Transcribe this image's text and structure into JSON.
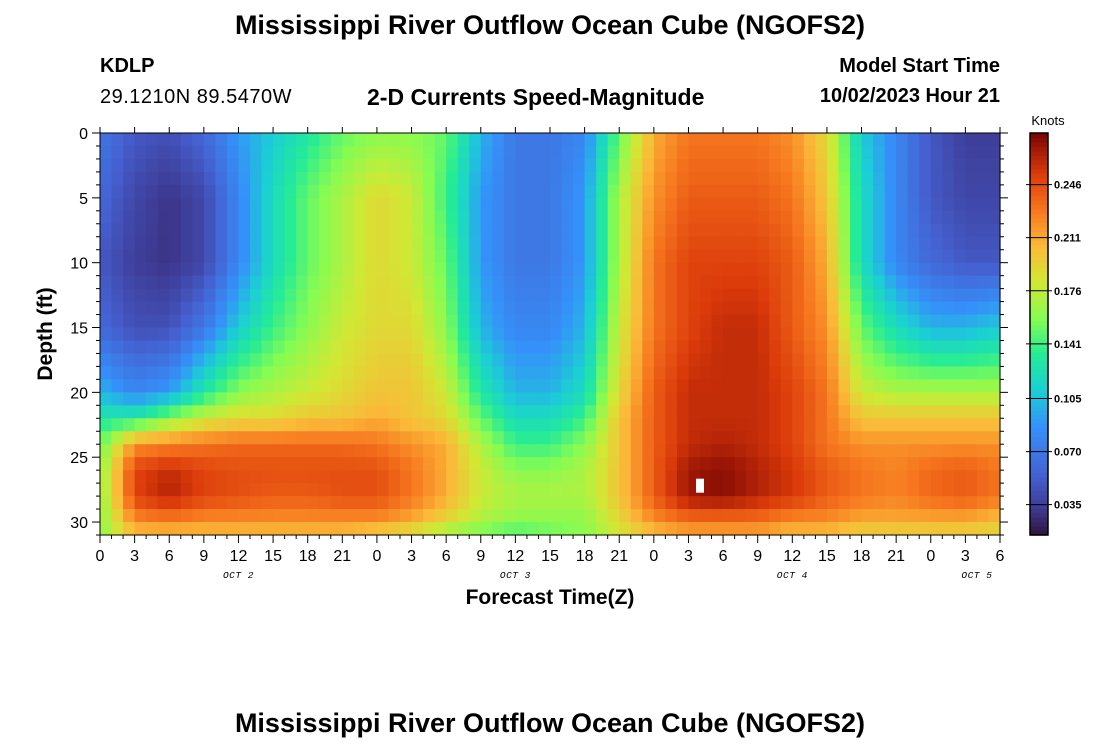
{
  "page_title": "Mississippi River Outflow Ocean Cube (NGOFS2)",
  "station": {
    "id": "KDLP",
    "coords": "29.1210N  89.5470W"
  },
  "model_start": {
    "label": "Model Start Time",
    "value": "10/02/2023 Hour 21"
  },
  "chart_data": {
    "type": "heatmap",
    "title": "2-D Currents Speed-Magnitude",
    "xlabel": "Forecast Time(Z)",
    "ylabel": "Depth (ft)",
    "colorbar_label": "Knots",
    "x_range_hours": [
      0,
      78
    ],
    "y_range_ft": [
      0,
      31
    ],
    "y_inverted": true,
    "grid": false,
    "x_tick_labels": [
      "0",
      "3",
      "6",
      "9",
      "12",
      "15",
      "18",
      "21",
      "0",
      "3",
      "6",
      "9",
      "12",
      "15",
      "18",
      "21",
      "0",
      "3",
      "6",
      "9",
      "12",
      "15",
      "18",
      "21",
      "0",
      "3",
      "6"
    ],
    "y_tick_labels": [
      "0",
      "5",
      "10",
      "15",
      "20",
      "25",
      "30"
    ],
    "date_labels": [
      {
        "text": "OCT 2",
        "hour": 12
      },
      {
        "text": "OCT 3",
        "hour": 36
      },
      {
        "text": "OCT 4",
        "hour": 60
      },
      {
        "text": "OCT 5",
        "hour": 76
      }
    ],
    "colorbar": {
      "min": 0.015,
      "max": 0.28,
      "tick_labels": [
        "0.035",
        "0.070",
        "0.105",
        "0.141",
        "0.176",
        "0.211",
        "0.246"
      ],
      "tick_values": [
        0.035,
        0.07,
        0.105,
        0.141,
        0.176,
        0.211,
        0.246
      ]
    },
    "speed_min": 0.015,
    "speed_max": 0.28,
    "speed_grid": {
      "hours": [
        0,
        3,
        6,
        9,
        12,
        15,
        18,
        21,
        24,
        27,
        30,
        33,
        36,
        39,
        42,
        45,
        48,
        51,
        54,
        57,
        60,
        63,
        66,
        69,
        72,
        75,
        78
      ],
      "depths_ft": [
        0,
        5,
        10,
        15,
        20,
        22,
        24,
        26,
        28,
        30,
        31
      ],
      "values": [
        [
          0.07,
          0.05,
          0.045,
          0.06,
          0.09,
          0.11,
          0.13,
          0.15,
          0.16,
          0.16,
          0.15,
          0.1,
          0.07,
          0.07,
          0.08,
          0.15,
          0.21,
          0.23,
          0.23,
          0.23,
          0.22,
          0.19,
          0.11,
          0.08,
          0.05,
          0.035,
          0.035
        ],
        [
          0.06,
          0.04,
          0.03,
          0.04,
          0.08,
          0.12,
          0.15,
          0.17,
          0.19,
          0.18,
          0.14,
          0.09,
          0.07,
          0.07,
          0.09,
          0.17,
          0.22,
          0.24,
          0.24,
          0.24,
          0.23,
          0.2,
          0.12,
          0.08,
          0.05,
          0.04,
          0.04
        ],
        [
          0.05,
          0.035,
          0.03,
          0.04,
          0.08,
          0.12,
          0.15,
          0.17,
          0.19,
          0.18,
          0.15,
          0.09,
          0.07,
          0.07,
          0.09,
          0.17,
          0.23,
          0.25,
          0.25,
          0.25,
          0.24,
          0.21,
          0.12,
          0.08,
          0.06,
          0.05,
          0.05
        ],
        [
          0.06,
          0.045,
          0.045,
          0.07,
          0.11,
          0.14,
          0.16,
          0.18,
          0.19,
          0.19,
          0.16,
          0.1,
          0.08,
          0.08,
          0.1,
          0.18,
          0.23,
          0.25,
          0.26,
          0.26,
          0.24,
          0.22,
          0.15,
          0.12,
          0.1,
          0.1,
          0.11
        ],
        [
          0.1,
          0.08,
          0.09,
          0.13,
          0.16,
          0.17,
          0.18,
          0.19,
          0.2,
          0.2,
          0.18,
          0.13,
          0.1,
          0.1,
          0.12,
          0.19,
          0.24,
          0.26,
          0.26,
          0.26,
          0.25,
          0.23,
          0.18,
          0.17,
          0.17,
          0.17,
          0.17
        ],
        [
          0.13,
          0.13,
          0.16,
          0.18,
          0.19,
          0.19,
          0.2,
          0.2,
          0.21,
          0.2,
          0.19,
          0.15,
          0.12,
          0.12,
          0.14,
          0.2,
          0.24,
          0.26,
          0.26,
          0.26,
          0.25,
          0.23,
          0.2,
          0.2,
          0.2,
          0.2,
          0.2
        ],
        [
          0.15,
          0.22,
          0.225,
          0.23,
          0.235,
          0.235,
          0.235,
          0.235,
          0.23,
          0.22,
          0.21,
          0.17,
          0.14,
          0.14,
          0.16,
          0.2,
          0.24,
          0.26,
          0.265,
          0.26,
          0.25,
          0.23,
          0.22,
          0.22,
          0.22,
          0.22,
          0.22
        ],
        [
          0.16,
          0.25,
          0.26,
          0.25,
          0.245,
          0.245,
          0.245,
          0.245,
          0.245,
          0.23,
          0.21,
          0.18,
          0.16,
          0.16,
          0.17,
          0.2,
          0.24,
          0.27,
          0.275,
          0.265,
          0.255,
          0.24,
          0.23,
          0.225,
          0.235,
          0.24,
          0.23
        ],
        [
          0.16,
          0.25,
          0.265,
          0.25,
          0.245,
          0.24,
          0.24,
          0.245,
          0.245,
          0.23,
          0.21,
          0.18,
          0.17,
          0.17,
          0.17,
          0.2,
          0.24,
          0.27,
          0.275,
          0.265,
          0.255,
          0.24,
          0.23,
          0.225,
          0.235,
          0.24,
          0.23
        ],
        [
          0.16,
          0.22,
          0.225,
          0.22,
          0.22,
          0.22,
          0.22,
          0.22,
          0.22,
          0.21,
          0.19,
          0.17,
          0.16,
          0.16,
          0.16,
          0.19,
          0.22,
          0.23,
          0.23,
          0.23,
          0.22,
          0.22,
          0.21,
          0.21,
          0.21,
          0.21,
          0.2
        ],
        [
          0.16,
          0.2,
          0.2,
          0.2,
          0.2,
          0.2,
          0.2,
          0.2,
          0.19,
          0.18,
          0.16,
          0.15,
          0.14,
          0.15,
          0.16,
          0.18,
          0.2,
          0.21,
          0.21,
          0.21,
          0.2,
          0.2,
          0.19,
          0.19,
          0.19,
          0.19,
          0.19
        ]
      ]
    },
    "marker": {
      "hour": 52,
      "depth_ft": 27.2,
      "color": "#ffffff"
    }
  },
  "bottom_title": "Mississippi River Outflow Ocean Cube (NGOFS2)"
}
